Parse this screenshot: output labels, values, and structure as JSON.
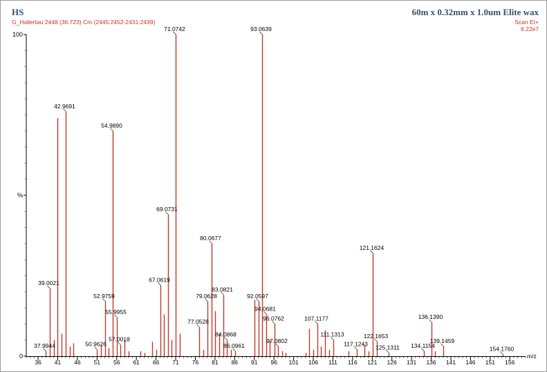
{
  "header": {
    "left_title": "HS",
    "subtitle": "G_Hallertau 2448 (36.723) Cm (2445:2452-2431:2439)",
    "right_title": "60m x 0.32mm x 1.0um Elite wax",
    "scan_mode": "Scan EI+",
    "total_intensity": "6.22e7"
  },
  "colors": {
    "peak": "#c0392b",
    "axis": "#000000",
    "title": "#3a4d6b",
    "header_red": "#c8321e"
  },
  "chart_data": {
    "type": "bar",
    "chart_style": "mass-spectrum-stick",
    "xlabel": "m/z",
    "ylabel": "%",
    "xlim": [
      33,
      160
    ],
    "ylim": [
      0,
      100
    ],
    "y_ticks": [
      "0",
      "%",
      "100"
    ],
    "x_ticks": [
      36,
      41,
      46,
      51,
      56,
      61,
      66,
      71,
      76,
      81,
      86,
      91,
      96,
      101,
      106,
      111,
      116,
      121,
      126,
      131,
      136,
      141,
      146,
      151,
      156
    ],
    "grid": false,
    "peaks": [
      {
        "mz": 37.9944,
        "rel": 1.5,
        "label": "37.9944"
      },
      {
        "mz": 39.0021,
        "rel": 21.0,
        "label": "39.0021"
      },
      {
        "mz": 40.0,
        "rel": 5.0,
        "label": ""
      },
      {
        "mz": 41.0,
        "rel": 74.0,
        "label": ""
      },
      {
        "mz": 42.0,
        "rel": 7.0,
        "label": ""
      },
      {
        "mz": 42.9691,
        "rel": 76.0,
        "label": "42.9691"
      },
      {
        "mz": 44.0,
        "rel": 3.0,
        "label": ""
      },
      {
        "mz": 45.0,
        "rel": 4.0,
        "label": ""
      },
      {
        "mz": 50.9626,
        "rel": 2.0,
        "label": "50.9626"
      },
      {
        "mz": 52.0,
        "rel": 3.5,
        "label": ""
      },
      {
        "mz": 52.9759,
        "rel": 17.0,
        "label": "52.9759"
      },
      {
        "mz": 54.0,
        "rel": 2.5,
        "label": ""
      },
      {
        "mz": 54.989,
        "rel": 70.0,
        "label": "54.9890"
      },
      {
        "mz": 55.9955,
        "rel": 12.0,
        "label": "55.9955"
      },
      {
        "mz": 57.0018,
        "rel": 3.5,
        "label": "57.0018"
      },
      {
        "mz": 58.0,
        "rel": 5.0,
        "label": ""
      },
      {
        "mz": 59.0,
        "rel": 1.5,
        "label": ""
      },
      {
        "mz": 62.0,
        "rel": 1.5,
        "label": ""
      },
      {
        "mz": 63.0,
        "rel": 1.0,
        "label": ""
      },
      {
        "mz": 65.0,
        "rel": 4.5,
        "label": ""
      },
      {
        "mz": 66.0,
        "rel": 2.0,
        "label": ""
      },
      {
        "mz": 67.0619,
        "rel": 22.0,
        "label": "67.0619"
      },
      {
        "mz": 68.0,
        "rel": 13.0,
        "label": ""
      },
      {
        "mz": 69.0731,
        "rel": 44.0,
        "label": "69.0731"
      },
      {
        "mz": 70.0,
        "rel": 5.0,
        "label": ""
      },
      {
        "mz": 71.0742,
        "rel": 100.0,
        "label": "71.0742"
      },
      {
        "mz": 72.0,
        "rel": 7.0,
        "label": ""
      },
      {
        "mz": 77.0528,
        "rel": 9.0,
        "label": "77.0528"
      },
      {
        "mz": 78.0,
        "rel": 2.0,
        "label": ""
      },
      {
        "mz": 79.0628,
        "rel": 17.0,
        "label": "79.0628"
      },
      {
        "mz": 80.0677,
        "rel": 35.0,
        "label": "80.0677"
      },
      {
        "mz": 81.0,
        "rel": 14.0,
        "label": ""
      },
      {
        "mz": 82.0,
        "rel": 7.0,
        "label": ""
      },
      {
        "mz": 83.0821,
        "rel": 19.0,
        "label": "83.0821"
      },
      {
        "mz": 84.0868,
        "rel": 5.0,
        "label": "84.0868"
      },
      {
        "mz": 85.0,
        "rel": 2.0,
        "label": ""
      },
      {
        "mz": 86.0961,
        "rel": 1.5,
        "label": "86.0961"
      },
      {
        "mz": 91.0,
        "rel": 17.5,
        "label": ""
      },
      {
        "mz": 92.0597,
        "rel": 17.0,
        "label": "92.0597"
      },
      {
        "mz": 93.0639,
        "rel": 100.0,
        "label": "93.0639"
      },
      {
        "mz": 94.0681,
        "rel": 13.0,
        "label": "94.0681"
      },
      {
        "mz": 95.0,
        "rel": 5.0,
        "label": ""
      },
      {
        "mz": 96.0762,
        "rel": 10.0,
        "label": "96.0762"
      },
      {
        "mz": 97.0802,
        "rel": 3.0,
        "label": "97.0802"
      },
      {
        "mz": 98.0,
        "rel": 1.5,
        "label": ""
      },
      {
        "mz": 99.0,
        "rel": 1.0,
        "label": ""
      },
      {
        "mz": 104.0,
        "rel": 1.0,
        "label": ""
      },
      {
        "mz": 105.0,
        "rel": 8.5,
        "label": ""
      },
      {
        "mz": 106.0,
        "rel": 2.0,
        "label": ""
      },
      {
        "mz": 107.1177,
        "rel": 10.0,
        "label": "107.1177"
      },
      {
        "mz": 108.0,
        "rel": 3.0,
        "label": ""
      },
      {
        "mz": 109.0,
        "rel": 8.0,
        "label": ""
      },
      {
        "mz": 110.0,
        "rel": 2.0,
        "label": ""
      },
      {
        "mz": 111.1313,
        "rel": 5.0,
        "label": "111.1313"
      },
      {
        "mz": 115.0,
        "rel": 1.5,
        "label": ""
      },
      {
        "mz": 117.1243,
        "rel": 2.0,
        "label": "117.1243"
      },
      {
        "mz": 119.0,
        "rel": 3.5,
        "label": ""
      },
      {
        "mz": 120.0,
        "rel": 1.5,
        "label": ""
      },
      {
        "mz": 121.1624,
        "rel": 32.0,
        "label": "121.1624"
      },
      {
        "mz": 122.1653,
        "rel": 4.5,
        "label": "122.1653"
      },
      {
        "mz": 125.1311,
        "rel": 1.0,
        "label": "125.1311"
      },
      {
        "mz": 134.1154,
        "rel": 1.5,
        "label": "134.1154"
      },
      {
        "mz": 136.139,
        "rel": 10.5,
        "label": "136.1390"
      },
      {
        "mz": 137.0,
        "rel": 1.5,
        "label": ""
      },
      {
        "mz": 139.1459,
        "rel": 3.0,
        "label": "139.1459"
      },
      {
        "mz": 154.176,
        "rel": 0.5,
        "label": "154.1760"
      }
    ]
  }
}
